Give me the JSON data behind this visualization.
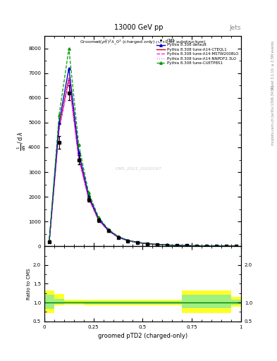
{
  "title_top": "13000 GeV pp",
  "title_right": "Jets",
  "xlabel": "groomed pTD2 (charged-only)",
  "ylabel_ratio": "Ratio to CMS",
  "watermark": "CMS_2021_I1920187",
  "xlim": [
    0,
    1
  ],
  "ylim_main": [
    0,
    8500
  ],
  "ylim_ratio": [
    0.5,
    2.5
  ],
  "yticks_main": [
    0,
    1000,
    2000,
    3000,
    4000,
    5000,
    6000,
    7000,
    8000
  ],
  "yticks_ratio": [
    0.5,
    1.0,
    1.5,
    2.0
  ],
  "yticks_ratio_right": [
    0.5,
    1.0,
    2.0
  ],
  "cms_data_x": [
    0.025,
    0.075,
    0.125,
    0.175,
    0.225,
    0.275,
    0.325,
    0.375,
    0.425,
    0.475,
    0.525,
    0.575,
    0.625,
    0.675,
    0.725,
    0.775,
    0.825,
    0.875,
    0.925,
    0.975
  ],
  "cms_data_y": [
    180,
    4200,
    6200,
    3500,
    1900,
    1050,
    620,
    360,
    220,
    145,
    95,
    68,
    48,
    33,
    23,
    18,
    14,
    9,
    7,
    4
  ],
  "cms_data_yerr": [
    30,
    250,
    300,
    180,
    100,
    60,
    35,
    22,
    13,
    9,
    7,
    5,
    3,
    2,
    2,
    1,
    1,
    1,
    1,
    1
  ],
  "pythia_default_y": [
    200,
    5000,
    7200,
    3800,
    2050,
    1130,
    660,
    385,
    235,
    155,
    103,
    72,
    51,
    35,
    24,
    19,
    14,
    10,
    7,
    4
  ],
  "pythia_cteql1_y": [
    185,
    4800,
    6800,
    3600,
    1960,
    1080,
    635,
    368,
    225,
    148,
    98,
    69,
    49,
    33,
    23,
    18,
    13,
    9,
    7,
    4
  ],
  "pythia_mstw_y": [
    175,
    4700,
    6700,
    3550,
    1930,
    1060,
    620,
    360,
    220,
    144,
    96,
    67,
    48,
    32,
    22,
    17,
    13,
    9,
    6,
    4
  ],
  "pythia_nnpdf_y": [
    180,
    4750,
    6750,
    3580,
    1940,
    1065,
    625,
    364,
    222,
    146,
    97,
    68,
    48,
    33,
    22,
    17,
    13,
    9,
    7,
    4
  ],
  "pythia_cuetp8_y": [
    230,
    5300,
    8000,
    4100,
    2180,
    1190,
    690,
    400,
    243,
    160,
    106,
    74,
    53,
    36,
    25,
    19,
    15,
    10,
    8,
    5
  ],
  "ratio_x_edges": [
    0.0,
    0.05,
    0.1,
    0.15,
    0.2,
    0.25,
    0.3,
    0.35,
    0.4,
    0.45,
    0.5,
    0.55,
    0.6,
    0.65,
    0.7,
    0.75,
    0.8,
    0.85,
    0.9,
    0.95,
    1.0
  ],
  "ratio_yellow_low": [
    0.72,
    0.93,
    0.95,
    0.95,
    0.93,
    0.93,
    0.93,
    0.93,
    0.93,
    0.93,
    0.93,
    0.93,
    0.93,
    0.93,
    0.72,
    0.72,
    0.72,
    0.72,
    0.72,
    0.88
  ],
  "ratio_yellow_high": [
    1.32,
    1.22,
    1.08,
    1.08,
    1.08,
    1.08,
    1.08,
    1.08,
    1.08,
    1.08,
    1.08,
    1.08,
    1.08,
    1.08,
    1.32,
    1.32,
    1.32,
    1.32,
    1.32,
    1.15
  ],
  "ratio_green_low": [
    0.83,
    0.97,
    0.98,
    0.98,
    0.97,
    0.97,
    0.97,
    0.97,
    0.97,
    0.97,
    0.97,
    0.97,
    0.97,
    0.97,
    0.85,
    0.85,
    0.85,
    0.85,
    0.85,
    0.94
  ],
  "ratio_green_high": [
    1.2,
    1.1,
    1.04,
    1.04,
    1.04,
    1.04,
    1.04,
    1.04,
    1.04,
    1.04,
    1.04,
    1.04,
    1.04,
    1.04,
    1.2,
    1.2,
    1.2,
    1.2,
    1.2,
    1.08
  ],
  "colors": {
    "cms": "black",
    "default": "#0000cc",
    "cteql1": "#cc0000",
    "mstw": "#ff00ff",
    "nnpdf": "#ff66ff",
    "cuetp8": "#009900"
  },
  "legend_labels": [
    "CMS",
    "Pythia 8.308 default",
    "Pythia 8.308 tune-A14-CTEQL1",
    "Pythia 8.308 tune-A14-MSTW2008LO",
    "Pythia 8.308 tune-A14-NNPDF2.3LO",
    "Pythia 8.308 tune-CUETP8S1"
  ]
}
